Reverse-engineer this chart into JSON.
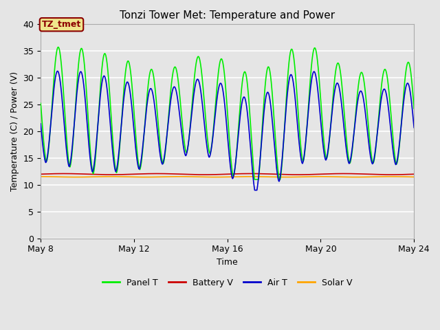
{
  "title": "Tonzi Tower Met: Temperature and Power",
  "xlabel": "Time",
  "ylabel": "Temperature (C) / Power (V)",
  "ylim": [
    0,
    40
  ],
  "yticks": [
    0,
    5,
    10,
    15,
    20,
    25,
    30,
    35,
    40
  ],
  "x_start_day": 8,
  "x_end_day": 24,
  "xtick_days": [
    8,
    12,
    16,
    20,
    24
  ],
  "xtick_labels": [
    "May 8",
    "May 12",
    "May 16",
    "May 20",
    "May 24"
  ],
  "bg_color": "#e5e5e5",
  "grid_color": "#ffffff",
  "annotation_text": "TZ_tmet",
  "annotation_box_facecolor": "#f0e68c",
  "annotation_border_color": "#8b0000",
  "annotation_text_color": "#8b0000",
  "legend_items": [
    "Panel T",
    "Battery V",
    "Air T",
    "Solar V"
  ],
  "legend_colors": [
    "#00ee00",
    "#cc0000",
    "#0000cc",
    "#ffa500"
  ],
  "panel_T_color": "#00ee00",
  "battery_V_color": "#cc0000",
  "air_T_color": "#0000cc",
  "solar_V_color": "#ffa500",
  "line_width": 1.2,
  "battery_V_level": 12.0,
  "solar_V_level": 11.5
}
